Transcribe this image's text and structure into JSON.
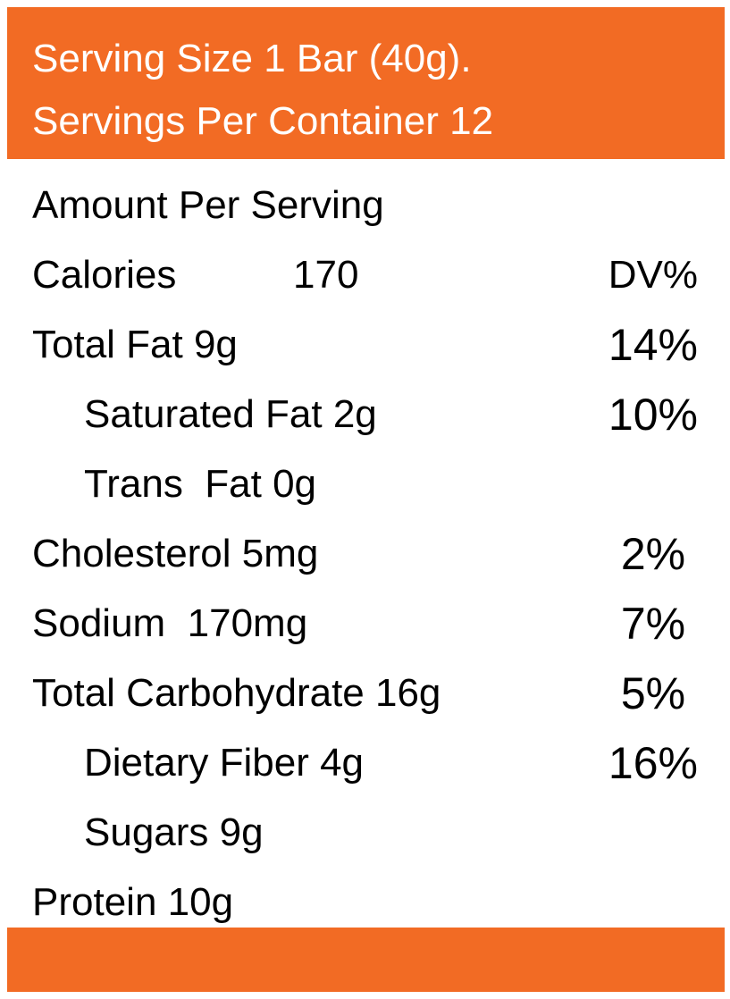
{
  "colors": {
    "accent": "#f26b24",
    "text": "#000000",
    "header_text": "#ffffff"
  },
  "header": {
    "serving_size": "Serving Size 1 Bar (40g).",
    "servings_per_container": "Servings Per Container 12"
  },
  "amount_per_serving": "Amount Per Serving",
  "calories": {
    "label": "Calories",
    "value": "170",
    "dv_header": "DV%"
  },
  "nutrients": [
    {
      "name": "Total Fat 9g",
      "dv": "14%"
    },
    {
      "name": "Saturated Fat 2g",
      "dv": "10%"
    },
    {
      "name": "Trans  Fat 0g",
      "dv": ""
    },
    {
      "name": "Cholesterol 5mg",
      "dv": "2%"
    },
    {
      "name": "Sodium  170mg",
      "dv": "7%"
    },
    {
      "name": "Total Carbohydrate 16g",
      "dv": "5%"
    },
    {
      "name": "Dietary Fiber 4g",
      "dv": "16%"
    },
    {
      "name": "Sugars 9g",
      "dv": ""
    },
    {
      "name": "Protein 10g",
      "dv": ""
    }
  ]
}
